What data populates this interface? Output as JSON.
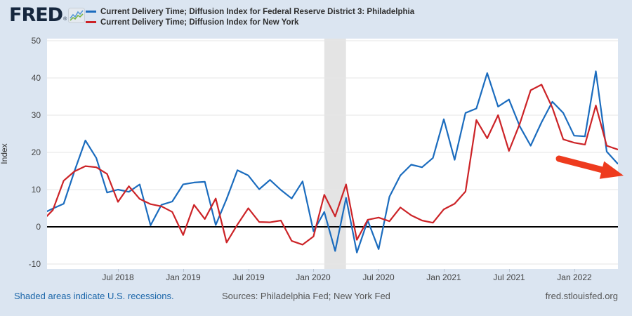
{
  "header": {
    "brand": "FRED",
    "legend": [
      {
        "label": "Current Delivery Time; Diffusion Index for Federal Reserve District 3: Philadelphia",
        "color": "#1b6cbe"
      },
      {
        "label": "Current Delivery Time; Diffusion Index for New York",
        "color": "#cc2327"
      }
    ]
  },
  "chart_data": {
    "type": "line",
    "ylabel": "Index",
    "ylim": [
      -10,
      50
    ],
    "yticks": [
      50,
      40,
      30,
      20,
      10,
      0,
      -10
    ],
    "grid": "horizontal",
    "x": [
      "Dec 2017",
      "Jan 2018",
      "Feb 2018",
      "Mar 2018",
      "Apr 2018",
      "May 2018",
      "Jun 2018",
      "Jul 2018",
      "Aug 2018",
      "Sep 2018",
      "Oct 2018",
      "Nov 2018",
      "Dec 2018",
      "Jan 2019",
      "Feb 2019",
      "Mar 2019",
      "Apr 2019",
      "May 2019",
      "Jun 2019",
      "Jul 2019",
      "Aug 2019",
      "Sep 2019",
      "Oct 2019",
      "Nov 2019",
      "Dec 2019",
      "Jan 2020",
      "Feb 2020",
      "Mar 2020",
      "Apr 2020",
      "May 2020",
      "Jun 2020",
      "Jul 2020",
      "Aug 2020",
      "Sep 2020",
      "Oct 2020",
      "Nov 2020",
      "Dec 2020",
      "Jan 2021",
      "Feb 2021",
      "Mar 2021",
      "Apr 2021",
      "May 2021",
      "Jun 2021",
      "Jul 2021",
      "Aug 2021",
      "Sep 2021",
      "Oct 2021",
      "Nov 2021",
      "Dec 2021",
      "Jan 2022",
      "Feb 2022",
      "Mar 2022",
      "Apr 2022",
      "May 2022"
    ],
    "xtick_labels": [
      "Jul 2018",
      "Jan 2019",
      "Jul 2019",
      "Jan 2020",
      "Jul 2020",
      "Jan 2021",
      "Jul 2021",
      "Jan 2022"
    ],
    "xtick_indices": [
      7,
      13,
      19,
      25,
      31,
      37,
      43,
      49
    ],
    "series": [
      {
        "name": "Current Delivery Time; Diffusion Index for Federal Reserve District 3: Philadelphia",
        "color": "#1b6cbe",
        "values": [
          3.5,
          4.9,
          6.2,
          15.0,
          23.2,
          18.5,
          9.2,
          10.0,
          9.4,
          11.4,
          0.4,
          5.9,
          6.8,
          11.4,
          11.9,
          12.1,
          0.5,
          7.5,
          15.2,
          13.8,
          10.1,
          12.6,
          9.9,
          7.6,
          12.2,
          -1.2,
          4.0,
          -6.5,
          7.8,
          -6.9,
          1.7,
          -6.0,
          8.1,
          13.8,
          16.7,
          16.0,
          18.5,
          28.9,
          18.0,
          30.6,
          31.8,
          41.3,
          32.3,
          34.2,
          27.0,
          21.8,
          28.1,
          33.6,
          30.6,
          24.5,
          24.3,
          41.8,
          20.2,
          17.0
        ]
      },
      {
        "name": "Current Delivery Time; Diffusion Index for New York",
        "color": "#cc2327",
        "values": [
          1.5,
          4.5,
          12.4,
          14.9,
          16.3,
          16.0,
          14.2,
          6.7,
          10.9,
          7.5,
          6.1,
          5.5,
          4.0,
          -2.2,
          5.9,
          2.1,
          7.6,
          -4.2,
          0.6,
          5.0,
          1.3,
          1.2,
          1.7,
          -3.8,
          -4.8,
          -2.6,
          8.6,
          2.8,
          11.4,
          -3.5,
          1.9,
          2.5,
          1.5,
          5.2,
          3.1,
          1.7,
          1.1,
          4.7,
          6.2,
          9.5,
          28.7,
          23.8,
          30.0,
          20.4,
          27.7,
          36.7,
          38.2,
          32.0,
          23.5,
          22.6,
          22.1,
          32.6,
          21.8,
          20.8
        ]
      }
    ],
    "recession_band": {
      "start_index": 26,
      "end_index": 28,
      "color": "#e4e4e4"
    },
    "zero_line_color": "#000000",
    "gridline_color": "#e6e6e6",
    "annotation_arrow_color": "#ee3b1e"
  },
  "footer": {
    "recession_note": "Shaded areas indicate U.S. recessions.",
    "sources": "Sources: Philadelphia Fed; New York Fed",
    "site": "fred.stlouisfed.org"
  }
}
